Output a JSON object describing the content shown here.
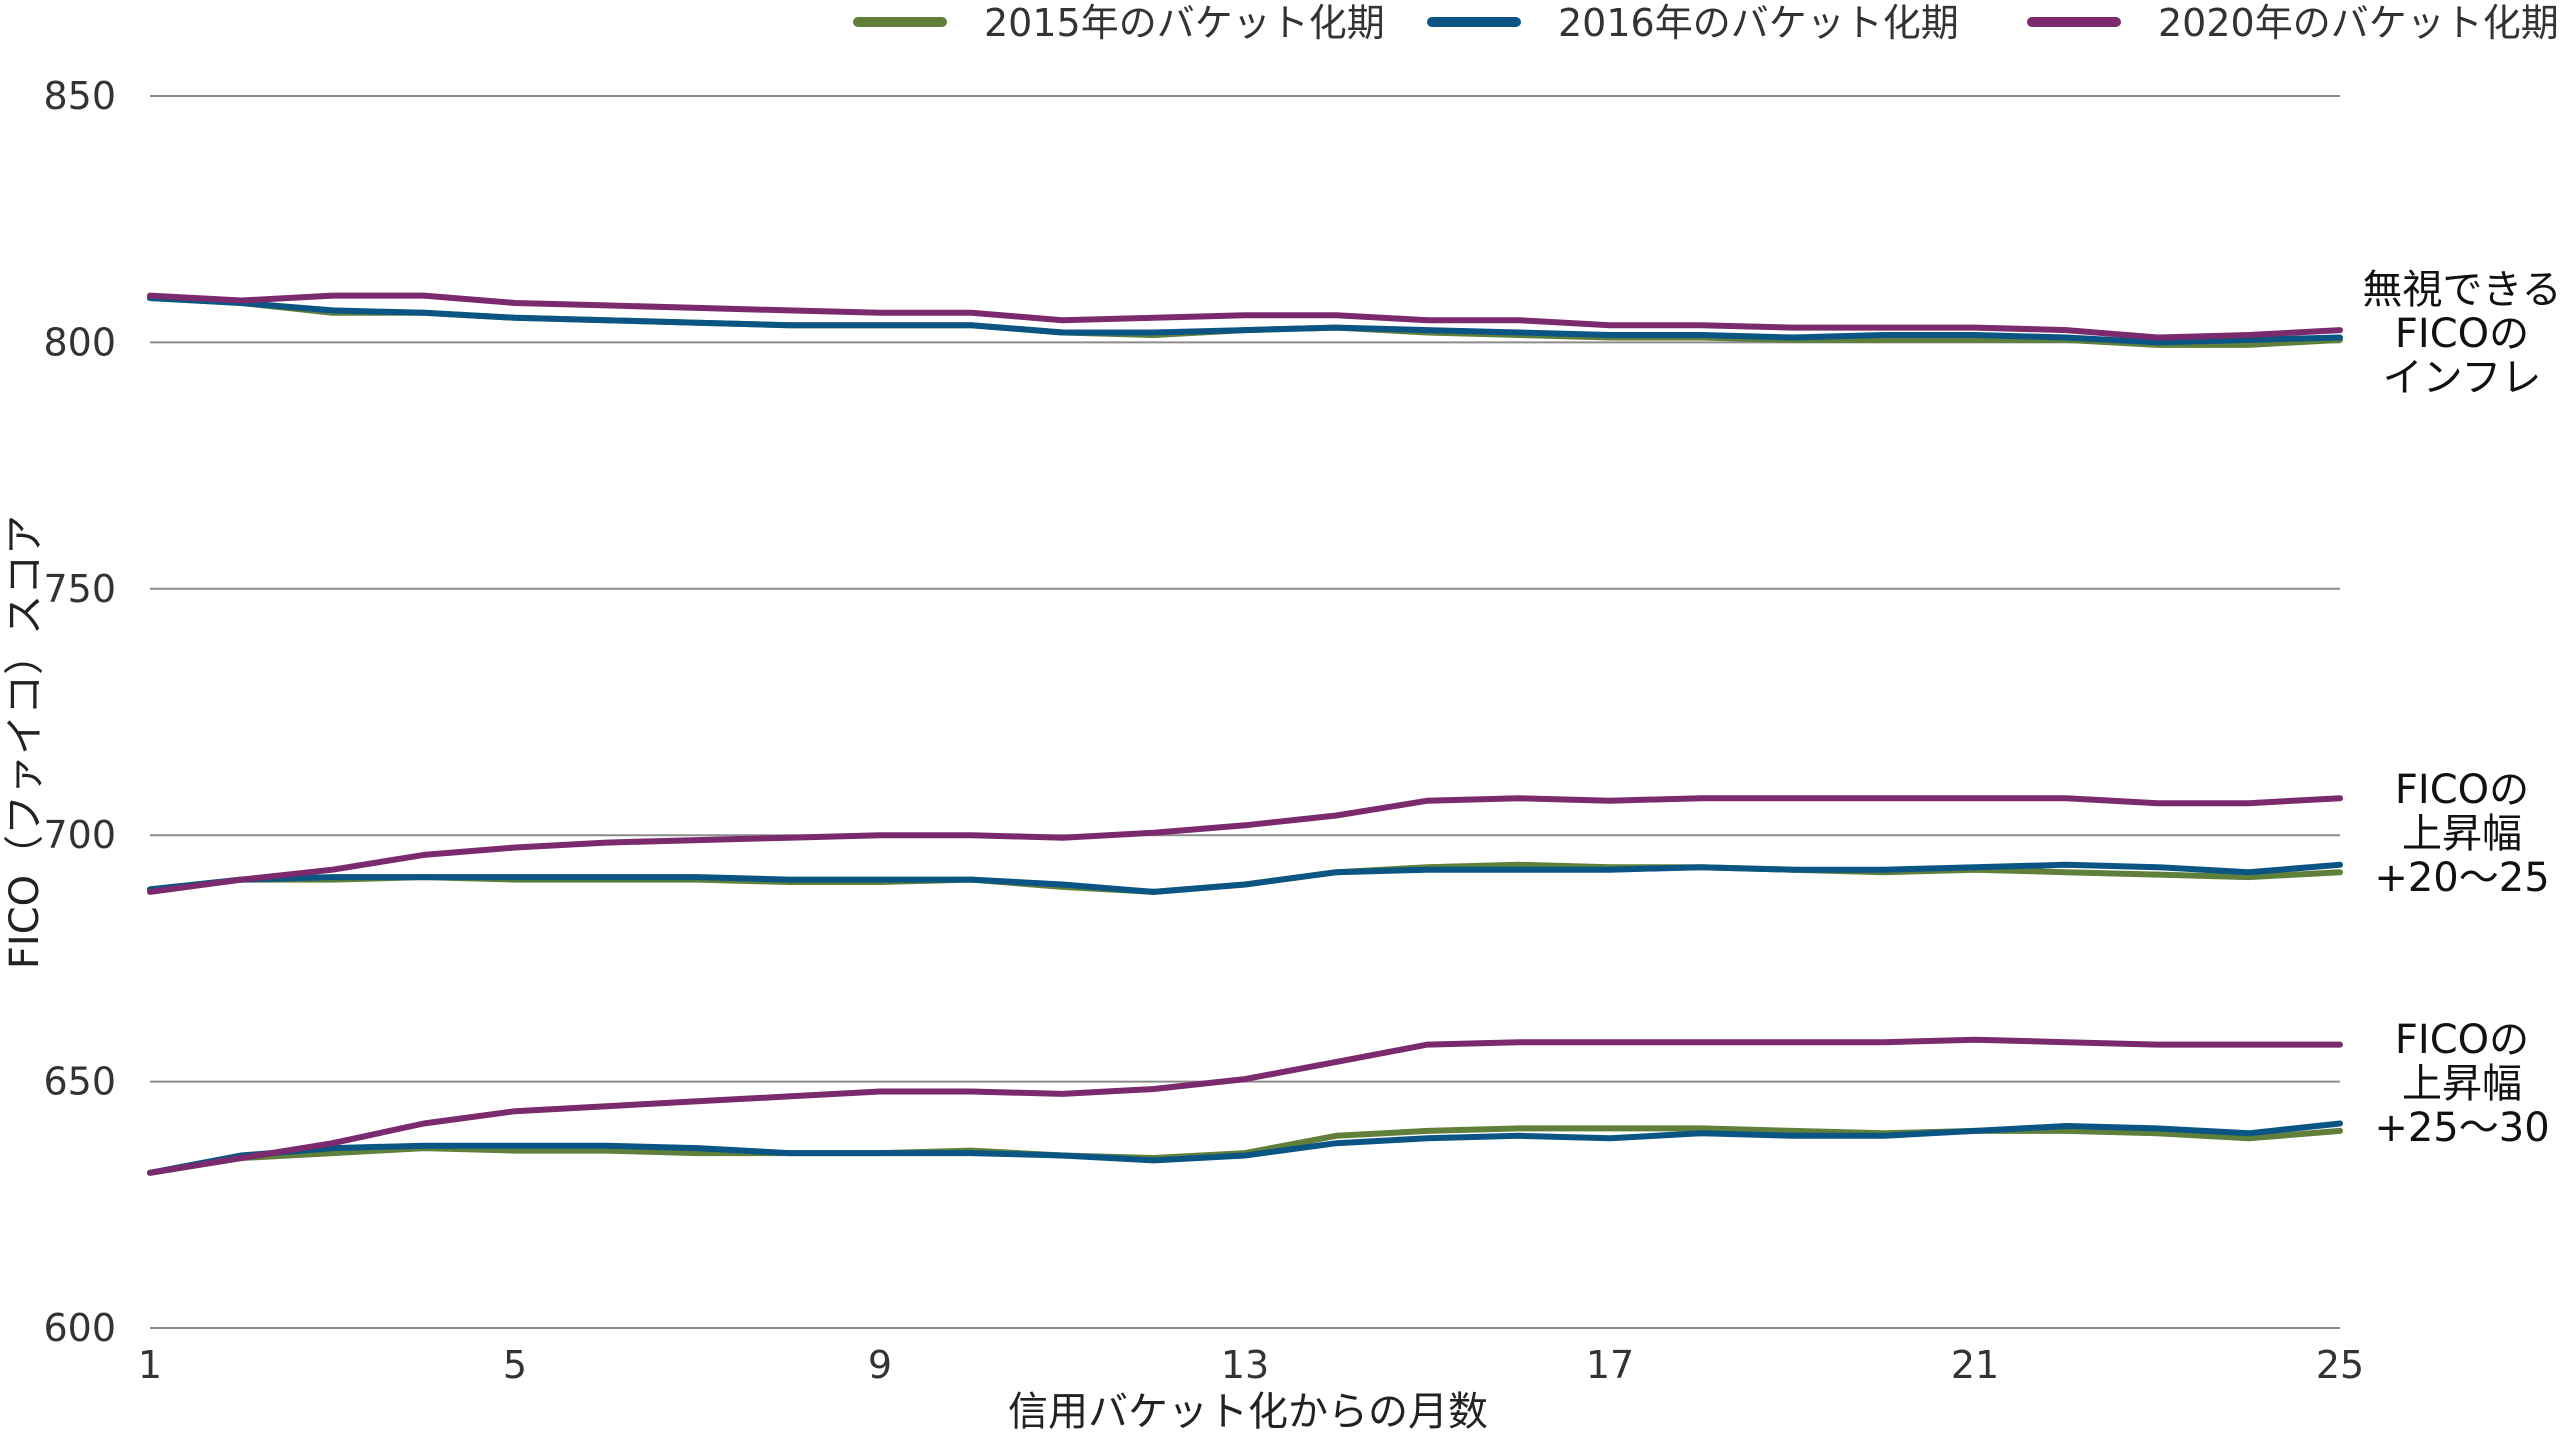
{
  "chart_data": {
    "type": "line",
    "xlabel": "信用バケット化からの月数",
    "ylabel": "FICO（ファイコ）スコア",
    "ylim": [
      600,
      850
    ],
    "xlim": [
      1,
      25
    ],
    "yticks": [
      600,
      650,
      700,
      750,
      800,
      850
    ],
    "xticks": [
      1,
      5,
      9,
      13,
      17,
      21,
      25
    ],
    "grid": "horizontal",
    "legend_position": "top",
    "x": [
      1,
      2,
      3,
      4,
      5,
      6,
      7,
      8,
      9,
      10,
      11,
      12,
      13,
      14,
      15,
      16,
      17,
      18,
      19,
      20,
      21,
      22,
      23,
      24,
      25
    ],
    "series_meta": [
      {
        "name": "2015年のバケット化期",
        "color": "#5f7f3a"
      },
      {
        "name": "2016年のバケット化期",
        "color": "#0b5585"
      },
      {
        "name": "2020年のバケット化期",
        "color": "#7b2a6e"
      }
    ],
    "groups": [
      {
        "annotation": [
          "無視できる",
          "FICOの",
          "インフレ"
        ],
        "series": [
          {
            "name": "2015年のバケット化期",
            "values": [
              809,
              808,
              806,
              806,
              805,
              804.5,
              804,
              803.5,
              803.5,
              803.5,
              802,
              801.5,
              802.5,
              803,
              802,
              801.5,
              801,
              801,
              800.5,
              800.5,
              800.5,
              800.5,
              799.5,
              799.5,
              800.5
            ]
          },
          {
            "name": "2016年のバケット化期",
            "values": [
              809,
              808,
              806.5,
              806,
              805,
              804.5,
              804,
              803.5,
              803.5,
              803.5,
              802,
              802,
              802.5,
              803,
              802.5,
              802,
              801.5,
              801.5,
              801,
              801.5,
              801.5,
              801,
              800,
              800.5,
              801
            ]
          },
          {
            "name": "2020年のバケット化期",
            "values": [
              809.5,
              808.5,
              809.5,
              809.5,
              808,
              807.5,
              807,
              806.5,
              806,
              806,
              804.5,
              805,
              805.5,
              805.5,
              804.5,
              804.5,
              803.5,
              803.5,
              803,
              803,
              803,
              802.5,
              801,
              801.5,
              802.5
            ]
          }
        ]
      },
      {
        "annotation": [
          "FICOの",
          "上昇幅",
          "+20〜25"
        ],
        "series": [
          {
            "name": "2015年のバケット化期",
            "values": [
              689,
              691,
              691,
              691.5,
              691,
              691,
              691,
              690.5,
              690.5,
              691,
              689.5,
              688.5,
              690,
              692.5,
              693.5,
              694,
              693.5,
              693.5,
              693,
              692.5,
              693,
              692.5,
              692,
              691.5,
              692.5
            ]
          },
          {
            "name": "2016年のバケット化期",
            "values": [
              689,
              691,
              691.5,
              691.5,
              691.5,
              691.5,
              691.5,
              691,
              691,
              691,
              690,
              688.5,
              690,
              692.5,
              693,
              693,
              693,
              693.5,
              693,
              693,
              693.5,
              694,
              693.5,
              692.5,
              694
            ]
          },
          {
            "name": "2020年のバケット化期",
            "values": [
              688.5,
              691,
              693,
              696,
              697.5,
              698.5,
              699,
              699.5,
              700,
              700,
              699.5,
              700.5,
              702,
              704,
              707,
              707.5,
              707,
              707.5,
              707.5,
              707.5,
              707.5,
              707.5,
              706.5,
              706.5,
              707.5
            ]
          }
        ]
      },
      {
        "annotation": [
          "FICOの",
          "上昇幅",
          "+25〜30"
        ],
        "series": [
          {
            "name": "2015年のバケット化期",
            "values": [
              631.5,
              634.5,
              635.5,
              636.5,
              636,
              636,
              635.5,
              635.5,
              635.5,
              636,
              635,
              634.5,
              635.5,
              639,
              640,
              640.5,
              640.5,
              640.5,
              640,
              639.5,
              640,
              640,
              639.5,
              638.5,
              640
            ]
          },
          {
            "name": "2016年のバケット化期",
            "values": [
              631.5,
              635,
              636.5,
              637,
              637,
              637,
              636.5,
              635.5,
              635.5,
              635.5,
              635,
              634,
              635,
              637.5,
              638.5,
              639,
              638.5,
              639.5,
              639,
              639,
              640,
              641,
              640.5,
              639.5,
              641.5
            ]
          },
          {
            "name": "2020年のバケット化期",
            "values": [
              631.5,
              634.5,
              637.5,
              641.5,
              644,
              645,
              646,
              647,
              648,
              648,
              647.5,
              648.5,
              650.5,
              654,
              657.5,
              658,
              658,
              658,
              658,
              658,
              658.5,
              658,
              657.5,
              657.5,
              657.5
            ]
          }
        ]
      }
    ]
  }
}
